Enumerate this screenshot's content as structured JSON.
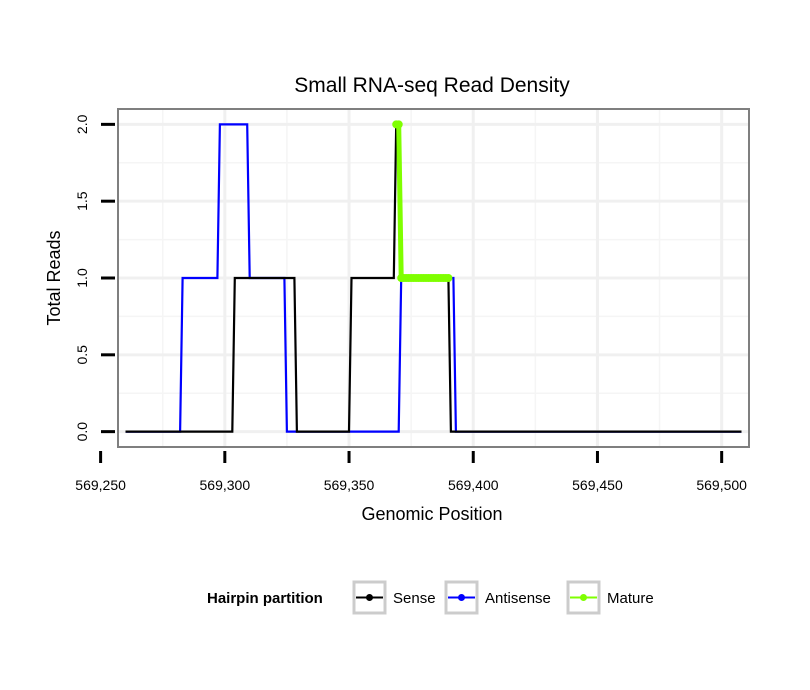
{
  "chart_data": {
    "type": "line",
    "title": "Small RNA-seq Read Density",
    "xlabel": "Genomic Position",
    "ylabel": "Total Reads",
    "xlim": [
      569257,
      569511
    ],
    "ylim": [
      -0.1,
      2.1
    ],
    "xticks": [
      569250,
      569300,
      569350,
      569400,
      569450,
      569500
    ],
    "xtick_labels": [
      "569,250",
      "569,300",
      "569,350",
      "569,400",
      "569,450",
      "569,500"
    ],
    "yticks": [
      0,
      0.5,
      1,
      1.5,
      2
    ],
    "ytick_labels": [
      "0.0",
      "0.5",
      "1.0",
      "1.5",
      "2.0"
    ],
    "grid": true,
    "legend": {
      "title": "Hairpin partition",
      "position": "bottom",
      "entries": [
        "Sense",
        "Antisense",
        "Mature"
      ]
    },
    "series": [
      {
        "name": "Antisense",
        "color": "#0000ff",
        "x": [
          569260,
          569282,
          569283,
          569297,
          569298,
          569309,
          569310,
          569324,
          569325,
          569354,
          569355,
          569370,
          569371,
          569392,
          569393,
          569508
        ],
        "y": [
          0,
          0,
          1,
          1,
          2,
          2,
          1,
          1,
          0,
          0,
          0,
          0,
          1,
          1,
          0,
          0
        ]
      },
      {
        "name": "Sense",
        "color": "#000000",
        "x": [
          569260,
          569303,
          569304,
          569328,
          569329,
          569350,
          569351,
          569368,
          569369,
          569370,
          569371,
          569390,
          569391,
          569508
        ],
        "y": [
          0,
          0,
          1,
          1,
          0,
          0,
          1,
          1,
          2,
          2,
          1,
          1,
          0,
          0
        ]
      },
      {
        "name": "Mature",
        "color": "#7fff00",
        "x": [
          569369,
          569370,
          569371,
          569372,
          569373,
          569374,
          569375,
          569376,
          569377,
          569378,
          569379,
          569380,
          569381,
          569382,
          569383,
          569384,
          569385,
          569386,
          569387,
          569388,
          569389,
          569390
        ],
        "y": [
          2,
          2,
          1,
          1,
          1,
          1,
          1,
          1,
          1,
          1,
          1,
          1,
          1,
          1,
          1,
          1,
          1,
          1,
          1,
          1,
          1,
          1
        ]
      }
    ]
  }
}
